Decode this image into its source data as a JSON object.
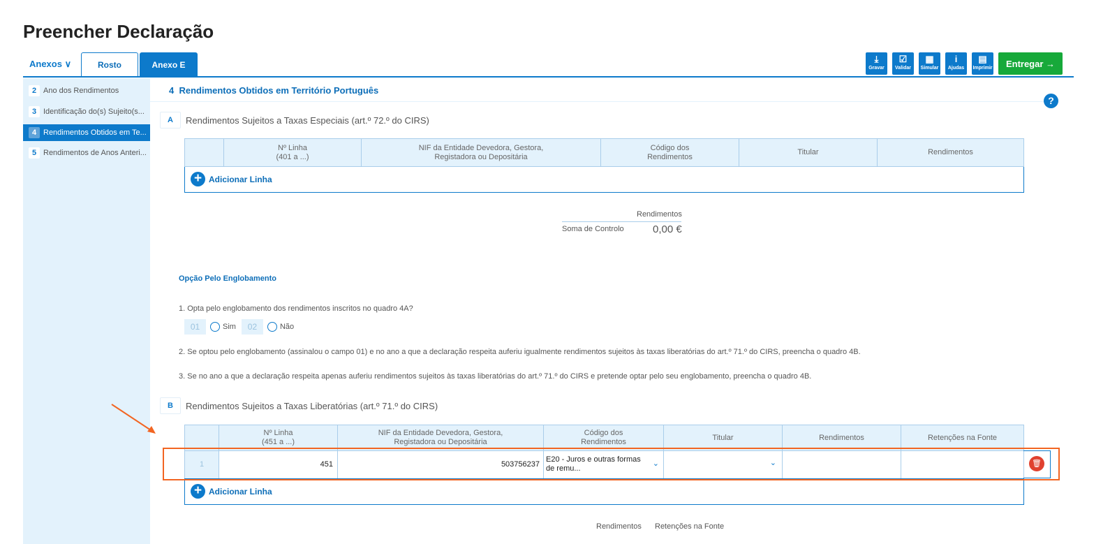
{
  "page_title": "Preencher Declaração",
  "tabs": {
    "anexos": "Anexos",
    "rosto": "Rosto",
    "anexo_e": "Anexo E"
  },
  "toolbar": {
    "gravar": "Gravar",
    "validar": "Validar",
    "simular": "Simular",
    "ajudas": "Ajudas",
    "imprimir": "Imprimir",
    "entregar": "Entregar"
  },
  "sidebar": {
    "items": [
      {
        "num": "2",
        "label": "Ano dos Rendimentos"
      },
      {
        "num": "3",
        "label": "Identificação do(s) Sujeito(s..."
      },
      {
        "num": "4",
        "label": "Rendimentos Obtidos em Te..."
      },
      {
        "num": "5",
        "label": "Rendimentos de Anos Anteri..."
      }
    ]
  },
  "section": {
    "num": "4",
    "title": "Rendimentos Obtidos em Território Português",
    "help": "?"
  },
  "quadro_a": {
    "badge": "A",
    "title": "Rendimentos Sujeitos a Taxas Especiais (art.º 72.º do CIRS)",
    "headers": [
      "",
      "Nº Linha\n(401 a ...)",
      "NIF da Entidade Devedora, Gestora,\nRegistadora ou Depositária",
      "Código dos\nRendimentos",
      "Titular",
      "Rendimentos"
    ],
    "add_line": "Adicionar Linha",
    "summary": {
      "col": "Rendimentos",
      "label": "Soma de Controlo",
      "value": "0,00 €"
    }
  },
  "englobamento": {
    "title": "Opção Pelo Englobamento",
    "q1": "1. Opta pelo englobamento dos rendimentos inscritos no quadro 4A?",
    "opt1_code": "01",
    "opt1": "Sim",
    "opt2_code": "02",
    "opt2": "Não",
    "q2": "2. Se optou pelo englobamento (assinalou o campo 01) e no ano a que a declaração respeita auferiu igualmente rendimentos sujeitos às taxas liberatórias do art.º 71.º do CIRS, preencha o quadro 4B.",
    "q3": "3. Se no ano a que a declaração respeita apenas auferiu rendimentos sujeitos às taxas liberatórias do art.º 71.º do CIRS e pretende optar pelo seu englobamento, preencha o quadro 4B."
  },
  "quadro_b": {
    "badge": "B",
    "title": "Rendimentos Sujeitos a Taxas Liberatórias (art.º 71.º do CIRS)",
    "headers": [
      "",
      "Nº Linha\n(451 a ...)",
      "NIF da Entidade Devedora, Gestora,\nRegistadora ou Depositária",
      "Código dos\nRendimentos",
      "Titular",
      "Rendimentos",
      "Retenções na Fonte"
    ],
    "rows": [
      {
        "index": "1",
        "linha": "451",
        "nif": "503756237",
        "codigo": "E20 - Juros e outras formas de remu...",
        "titular": "",
        "rendimentos": "",
        "retencoes": ""
      }
    ],
    "add_line": "Adicionar Linha",
    "summary": {
      "col1": "Rendimentos",
      "col2": "Retenções na Fonte"
    }
  },
  "colors": {
    "primary": "#0d7acb",
    "green": "#17a93a",
    "annotation": "#f26522",
    "delete": "#e0412f"
  }
}
